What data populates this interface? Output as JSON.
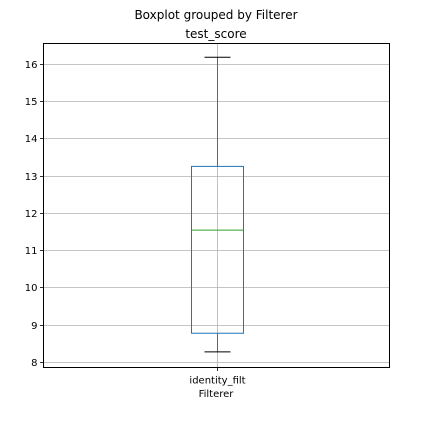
{
  "colors": {
    "box": "#1f77b4",
    "median": "#2ca02c",
    "grid": "#b0b0b0",
    "axes": "#000000"
  },
  "chart_data": {
    "type": "boxplot",
    "suptitle": "Boxplot grouped by Filterer",
    "title": "test_score",
    "xlabel": "Filterer",
    "ylabel": "",
    "ylim": [
      7.85,
      16.55
    ],
    "yticks": [
      8,
      9,
      10,
      11,
      12,
      13,
      14,
      15,
      16
    ],
    "grid": true,
    "categories": [
      "identity_filt"
    ],
    "boxes": [
      {
        "category": "identity_filt",
        "whisker_low": 8.27,
        "q1": 8.77,
        "median": 11.54,
        "q3": 13.25,
        "whisker_high": 16.18
      }
    ]
  }
}
